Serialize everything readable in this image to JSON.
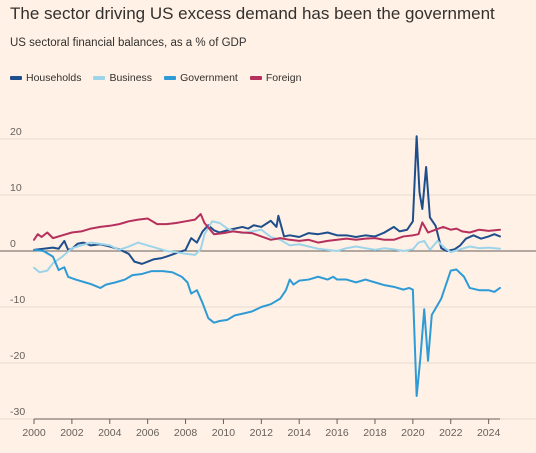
{
  "title": "The sector driving US excess demand has been the government",
  "subtitle": "US sectoral financial balances, as a % of GDP",
  "chart_data": {
    "type": "line",
    "title": "The sector driving US excess demand has been the government",
    "subtitle": "US sectoral financial balances, as a % of GDP",
    "xlabel": "",
    "ylabel": "",
    "xlim": [
      2000,
      2024.6
    ],
    "ylim": [
      -30,
      20
    ],
    "x_ticks": [
      "2000",
      "2002",
      "2004",
      "2006",
      "2008",
      "2010",
      "2012",
      "2014",
      "2016",
      "2018",
      "2020",
      "2022",
      "2024"
    ],
    "y_ticks": [
      "-30",
      "-20",
      "-10",
      "0",
      "10",
      "20"
    ],
    "grid": true,
    "legend_position": "top-left",
    "series": [
      {
        "name": "Households",
        "color": "#1f4e8c",
        "points": [
          [
            2000,
            0.2
          ],
          [
            2000.5,
            0.4
          ],
          [
            2001,
            0.6
          ],
          [
            2001.3,
            0.4
          ],
          [
            2001.6,
            1.8
          ],
          [
            2001.8,
            0.2
          ],
          [
            2002,
            0.4
          ],
          [
            2002.3,
            1.3
          ],
          [
            2002.6,
            1.5
          ],
          [
            2003,
            1.0
          ],
          [
            2003.5,
            1.2
          ],
          [
            2004,
            0.8
          ],
          [
            2004.5,
            0.3
          ],
          [
            2005,
            -0.5
          ],
          [
            2005.3,
            -1.9
          ],
          [
            2005.7,
            -2.3
          ],
          [
            2006,
            -1.9
          ],
          [
            2006.3,
            -1.5
          ],
          [
            2006.7,
            -1.3
          ],
          [
            2007,
            -1.0
          ],
          [
            2007.5,
            -0.4
          ],
          [
            2008,
            0.2
          ],
          [
            2008.3,
            2.3
          ],
          [
            2008.6,
            1.5
          ],
          [
            2008.9,
            3.5
          ],
          [
            2009.2,
            4.6
          ],
          [
            2009.5,
            3.7
          ],
          [
            2009.8,
            3.3
          ],
          [
            2010.2,
            3.7
          ],
          [
            2010.6,
            4.0
          ],
          [
            2011,
            4.3
          ],
          [
            2011.3,
            4.0
          ],
          [
            2011.6,
            4.6
          ],
          [
            2012,
            4.3
          ],
          [
            2012.5,
            5.4
          ],
          [
            2012.8,
            4.3
          ],
          [
            2012.9,
            6.3
          ],
          [
            2013.2,
            2.6
          ],
          [
            2013.5,
            2.8
          ],
          [
            2014,
            2.5
          ],
          [
            2014.5,
            3.2
          ],
          [
            2015,
            3.0
          ],
          [
            2015.5,
            3.3
          ],
          [
            2016,
            2.8
          ],
          [
            2016.5,
            2.8
          ],
          [
            2017,
            2.5
          ],
          [
            2017.5,
            2.8
          ],
          [
            2018,
            2.6
          ],
          [
            2018.5,
            3.3
          ],
          [
            2019,
            4.3
          ],
          [
            2019.3,
            3.5
          ],
          [
            2019.7,
            3.8
          ],
          [
            2020,
            5.3
          ],
          [
            2020.2,
            20.5
          ],
          [
            2020.35,
            10.5
          ],
          [
            2020.5,
            7.5
          ],
          [
            2020.7,
            15.0
          ],
          [
            2020.9,
            6.0
          ],
          [
            2021.2,
            4.5
          ],
          [
            2021.5,
            0.5
          ],
          [
            2021.8,
            0.0
          ],
          [
            2022.2,
            0.3
          ],
          [
            2022.5,
            1.0
          ],
          [
            2022.8,
            2.2
          ],
          [
            2023.2,
            2.8
          ],
          [
            2023.6,
            2.2
          ],
          [
            2024,
            2.6
          ],
          [
            2024.3,
            3.0
          ],
          [
            2024.6,
            2.6
          ]
        ]
      },
      {
        "name": "Business",
        "color": "#9ed4ea",
        "points": [
          [
            2000,
            -3.0
          ],
          [
            2000.3,
            -3.8
          ],
          [
            2000.7,
            -3.5
          ],
          [
            2001,
            -2.2
          ],
          [
            2001.5,
            -1.0
          ],
          [
            2002,
            0.5
          ],
          [
            2002.5,
            1.0
          ],
          [
            2003,
            1.5
          ],
          [
            2003.5,
            1.3
          ],
          [
            2004,
            1.0
          ],
          [
            2004.5,
            0.2
          ],
          [
            2005,
            0.8
          ],
          [
            2005.5,
            1.5
          ],
          [
            2006,
            1.0
          ],
          [
            2006.5,
            0.5
          ],
          [
            2007,
            0.0
          ],
          [
            2007.5,
            -0.2
          ],
          [
            2008,
            -0.5
          ],
          [
            2008.5,
            -0.7
          ],
          [
            2008.8,
            0.3
          ],
          [
            2009,
            3.0
          ],
          [
            2009.4,
            5.3
          ],
          [
            2009.8,
            5.0
          ],
          [
            2010.2,
            4.0
          ],
          [
            2010.6,
            3.5
          ],
          [
            2011,
            3.2
          ],
          [
            2011.5,
            3.5
          ],
          [
            2012,
            3.8
          ],
          [
            2012.5,
            2.5
          ],
          [
            2013,
            2.0
          ],
          [
            2013.5,
            1.0
          ],
          [
            2014,
            1.2
          ],
          [
            2014.5,
            0.8
          ],
          [
            2015,
            0.4
          ],
          [
            2015.5,
            0.2
          ],
          [
            2016,
            0.0
          ],
          [
            2016.5,
            0.5
          ],
          [
            2017,
            0.8
          ],
          [
            2017.5,
            0.5
          ],
          [
            2018,
            0.2
          ],
          [
            2018.5,
            0.5
          ],
          [
            2019,
            0.3
          ],
          [
            2019.5,
            0.0
          ],
          [
            2020,
            0.3
          ],
          [
            2020.3,
            1.5
          ],
          [
            2020.6,
            1.8
          ],
          [
            2020.9,
            0.2
          ],
          [
            2021.3,
            1.8
          ],
          [
            2021.7,
            0.5
          ],
          [
            2022,
            -0.2
          ],
          [
            2022.5,
            0.3
          ],
          [
            2023,
            0.8
          ],
          [
            2023.5,
            0.5
          ],
          [
            2024,
            0.6
          ],
          [
            2024.6,
            0.4
          ]
        ]
      },
      {
        "name": "Government",
        "color": "#2e9bd6",
        "points": [
          [
            2000,
            0.2
          ],
          [
            2000.5,
            0.0
          ],
          [
            2001,
            -1.0
          ],
          [
            2001.3,
            -3.4
          ],
          [
            2001.6,
            -2.9
          ],
          [
            2001.8,
            -4.6
          ],
          [
            2002.2,
            -5.1
          ],
          [
            2002.7,
            -5.6
          ],
          [
            2003,
            -5.9
          ],
          [
            2003.5,
            -6.6
          ],
          [
            2003.8,
            -6.0
          ],
          [
            2004.3,
            -5.6
          ],
          [
            2004.8,
            -5.1
          ],
          [
            2005.2,
            -4.3
          ],
          [
            2005.7,
            -4.1
          ],
          [
            2006.2,
            -3.6
          ],
          [
            2006.8,
            -3.6
          ],
          [
            2007.3,
            -3.8
          ],
          [
            2007.8,
            -4.6
          ],
          [
            2008.1,
            -5.6
          ],
          [
            2008.3,
            -7.6
          ],
          [
            2008.6,
            -7.0
          ],
          [
            2008.9,
            -9.3
          ],
          [
            2009.2,
            -12.0
          ],
          [
            2009.5,
            -12.8
          ],
          [
            2009.8,
            -12.5
          ],
          [
            2010.2,
            -12.3
          ],
          [
            2010.6,
            -11.5
          ],
          [
            2011,
            -11.2
          ],
          [
            2011.5,
            -10.8
          ],
          [
            2012,
            -10.0
          ],
          [
            2012.5,
            -9.5
          ],
          [
            2013,
            -8.5
          ],
          [
            2013.3,
            -7.0
          ],
          [
            2013.5,
            -5.1
          ],
          [
            2013.7,
            -6.0
          ],
          [
            2014,
            -5.3
          ],
          [
            2014.5,
            -5.1
          ],
          [
            2015,
            -4.6
          ],
          [
            2015.5,
            -5.1
          ],
          [
            2015.8,
            -4.6
          ],
          [
            2016,
            -5.1
          ],
          [
            2016.5,
            -5.1
          ],
          [
            2017,
            -5.6
          ],
          [
            2017.5,
            -5.1
          ],
          [
            2018,
            -5.6
          ],
          [
            2018.5,
            -6.1
          ],
          [
            2019,
            -6.4
          ],
          [
            2019.5,
            -6.9
          ],
          [
            2019.8,
            -6.6
          ],
          [
            2020,
            -6.9
          ],
          [
            2020.2,
            -25.9
          ],
          [
            2020.4,
            -19.0
          ],
          [
            2020.6,
            -10.4
          ],
          [
            2020.8,
            -19.6
          ],
          [
            2021,
            -11.4
          ],
          [
            2021.5,
            -8.5
          ],
          [
            2022,
            -3.5
          ],
          [
            2022.3,
            -3.3
          ],
          [
            2022.7,
            -4.6
          ],
          [
            2023,
            -6.6
          ],
          [
            2023.5,
            -7.0
          ],
          [
            2024,
            -7.0
          ],
          [
            2024.3,
            -7.3
          ],
          [
            2024.6,
            -6.6
          ]
        ]
      },
      {
        "name": "Foreign",
        "color": "#b5305c",
        "points": [
          [
            2000,
            2.0
          ],
          [
            2000.2,
            3.0
          ],
          [
            2000.4,
            2.5
          ],
          [
            2000.7,
            3.3
          ],
          [
            2001,
            2.3
          ],
          [
            2001.5,
            2.8
          ],
          [
            2002,
            3.3
          ],
          [
            2002.5,
            3.5
          ],
          [
            2003,
            4.0
          ],
          [
            2003.5,
            4.3
          ],
          [
            2004,
            4.5
          ],
          [
            2004.5,
            4.8
          ],
          [
            2005,
            5.3
          ],
          [
            2005.5,
            5.6
          ],
          [
            2006,
            5.8
          ],
          [
            2006.5,
            4.8
          ],
          [
            2007,
            4.8
          ],
          [
            2007.5,
            5.0
          ],
          [
            2008,
            5.3
          ],
          [
            2008.5,
            5.6
          ],
          [
            2008.8,
            6.6
          ],
          [
            2009,
            5.0
          ],
          [
            2009.5,
            3.0
          ],
          [
            2010,
            3.2
          ],
          [
            2010.5,
            3.5
          ],
          [
            2011,
            3.3
          ],
          [
            2011.5,
            3.2
          ],
          [
            2012,
            2.6
          ],
          [
            2012.5,
            2.0
          ],
          [
            2013,
            2.3
          ],
          [
            2013.5,
            2.0
          ],
          [
            2014,
            1.8
          ],
          [
            2014.5,
            2.0
          ],
          [
            2015,
            1.5
          ],
          [
            2015.5,
            1.8
          ],
          [
            2016,
            2.0
          ],
          [
            2016.5,
            2.2
          ],
          [
            2017,
            2.0
          ],
          [
            2017.5,
            2.2
          ],
          [
            2018,
            2.3
          ],
          [
            2018.5,
            2.0
          ],
          [
            2019,
            2.0
          ],
          [
            2019.5,
            2.6
          ],
          [
            2020,
            2.8
          ],
          [
            2020.3,
            3.0
          ],
          [
            2020.5,
            5.1
          ],
          [
            2020.8,
            3.3
          ],
          [
            2021.2,
            3.8
          ],
          [
            2021.6,
            4.3
          ],
          [
            2022,
            3.8
          ],
          [
            2022.3,
            4.0
          ],
          [
            2022.6,
            3.5
          ],
          [
            2023,
            3.3
          ],
          [
            2023.5,
            3.8
          ],
          [
            2024,
            3.6
          ],
          [
            2024.6,
            3.8
          ]
        ]
      }
    ]
  }
}
